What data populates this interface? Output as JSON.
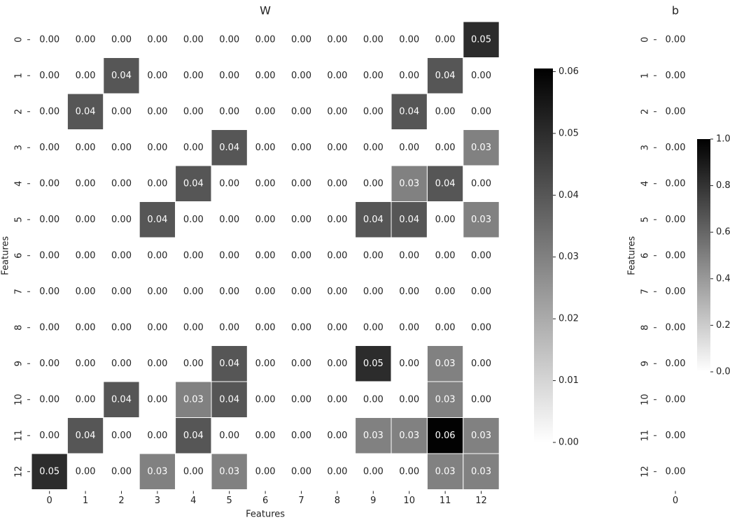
{
  "chart_data": [
    {
      "type": "heatmap",
      "title": "W",
      "xlabel": "Features",
      "ylabel": "Features",
      "x": [
        0,
        1,
        2,
        3,
        4,
        5,
        6,
        7,
        8,
        9,
        10,
        11,
        12
      ],
      "y": [
        0,
        1,
        2,
        3,
        4,
        5,
        6,
        7,
        8,
        9,
        10,
        11,
        12
      ],
      "colors": [
        "#ffffff",
        "#000000"
      ],
      "values": [
        [
          0,
          0,
          0,
          0,
          0,
          0,
          0,
          0,
          0,
          0,
          0,
          0,
          0.05
        ],
        [
          0,
          0,
          0.04,
          0,
          0,
          0,
          0,
          0,
          0,
          0,
          0,
          0.04,
          0
        ],
        [
          0,
          0.04,
          0,
          0,
          0,
          0,
          0,
          0,
          0,
          0,
          0.04,
          0,
          0
        ],
        [
          0,
          0,
          0,
          0,
          0,
          0.04,
          0,
          0,
          0,
          0,
          0,
          0,
          0.03
        ],
        [
          0,
          0,
          0,
          0,
          0.04,
          0,
          0,
          0,
          0,
          0,
          0.03,
          0.04,
          0
        ],
        [
          0,
          0,
          0,
          0.04,
          0,
          0,
          0,
          0,
          0,
          0.04,
          0.04,
          0,
          0.03
        ],
        [
          0,
          0,
          0,
          0,
          0,
          0,
          0,
          0,
          0,
          0,
          0,
          0,
          0
        ],
        [
          0,
          0,
          0,
          0,
          0,
          0,
          0,
          0,
          0,
          0,
          0,
          0,
          0
        ],
        [
          0,
          0,
          0,
          0,
          0,
          0,
          0,
          0,
          0,
          0,
          0,
          0,
          0
        ],
        [
          0,
          0,
          0,
          0,
          0,
          0.04,
          0,
          0,
          0,
          0.05,
          0,
          0.03,
          0
        ],
        [
          0,
          0,
          0.04,
          0,
          0.03,
          0.04,
          0,
          0,
          0,
          0,
          0,
          0.03,
          0
        ],
        [
          0,
          0.04,
          0,
          0,
          0.04,
          0,
          0,
          0,
          0,
          0.03,
          0.03,
          0.06,
          0.03
        ],
        [
          0.05,
          0,
          0,
          0.03,
          0,
          0.03,
          0,
          0,
          0,
          0,
          0,
          0.03,
          0.03
        ]
      ],
      "value_labels": [
        [
          "0.00",
          "0.00",
          "0.00",
          "0.00",
          "0.00",
          "0.00",
          "0.00",
          "0.00",
          "0.00",
          "0.00",
          "0.00",
          "0.00",
          "0.05"
        ],
        [
          "0.00",
          "0.00",
          "0.04",
          "0.00",
          "0.00",
          "0.00",
          "0.00",
          "0.00",
          "0.00",
          "0.00",
          "0.00",
          "0.04",
          "0.00"
        ],
        [
          "0.00",
          "0.04",
          "0.00",
          "0.00",
          "0.00",
          "0.00",
          "0.00",
          "0.00",
          "0.00",
          "0.00",
          "0.04",
          "0.00",
          "0.00"
        ],
        [
          "0.00",
          "0.00",
          "0.00",
          "0.00",
          "0.00",
          "0.04",
          "0.00",
          "0.00",
          "0.00",
          "0.00",
          "0.00",
          "0.00",
          "0.03"
        ],
        [
          "0.00",
          "0.00",
          "0.00",
          "0.00",
          "0.04",
          "0.00",
          "0.00",
          "0.00",
          "0.00",
          "0.00",
          "0.03",
          "0.04",
          "0.00"
        ],
        [
          "0.00",
          "0.00",
          "0.00",
          "0.04",
          "0.00",
          "0.00",
          "0.00",
          "0.00",
          "0.00",
          "0.04",
          "0.04",
          "0.00",
          "0.03"
        ],
        [
          "0.00",
          "0.00",
          "0.00",
          "0.00",
          "0.00",
          "0.00",
          "0.00",
          "0.00",
          "0.00",
          "0.00",
          "0.00",
          "0.00",
          "0.00"
        ],
        [
          "0.00",
          "0.00",
          "0.00",
          "0.00",
          "0.00",
          "0.00",
          "0.00",
          "0.00",
          "0.00",
          "0.00",
          "0.00",
          "0.00",
          "0.00"
        ],
        [
          "0.00",
          "0.00",
          "0.00",
          "0.00",
          "0.00",
          "0.00",
          "0.00",
          "0.00",
          "0.00",
          "0.00",
          "0.00",
          "0.00",
          "0.00"
        ],
        [
          "0.00",
          "0.00",
          "0.00",
          "0.00",
          "0.00",
          "0.04",
          "0.00",
          "0.00",
          "0.00",
          "0.05",
          "0.00",
          "0.03",
          "0.00"
        ],
        [
          "0.00",
          "0.00",
          "0.04",
          "0.00",
          "0.03",
          "0.04",
          "0.00",
          "0.00",
          "0.00",
          "0.00",
          "0.00",
          "0.03",
          "0.00"
        ],
        [
          "0.00",
          "0.04",
          "0.00",
          "0.00",
          "0.04",
          "0.00",
          "0.00",
          "0.00",
          "0.00",
          "0.03",
          "0.03",
          "0.06",
          "0.03"
        ],
        [
          "0.05",
          "0.00",
          "0.00",
          "0.03",
          "0.00",
          "0.03",
          "0.00",
          "0.00",
          "0.00",
          "0.00",
          "0.00",
          "0.03",
          "0.03"
        ]
      ],
      "colorbar_lim": [
        0,
        0.0605
      ],
      "colorbar_ticks": [
        {
          "value": 0,
          "label": "0.00"
        },
        {
          "value": 0.01,
          "label": "0.01"
        },
        {
          "value": 0.02,
          "label": "0.02"
        },
        {
          "value": 0.03,
          "label": "0.03"
        },
        {
          "value": 0.04,
          "label": "0.04"
        },
        {
          "value": 0.05,
          "label": "0.05"
        },
        {
          "value": 0.06,
          "label": "0.06"
        }
      ]
    },
    {
      "type": "heatmap",
      "title": "b",
      "ylabel": "Features",
      "x": [
        0
      ],
      "y": [
        0,
        1,
        2,
        3,
        4,
        5,
        6,
        7,
        8,
        9,
        10,
        11,
        12
      ],
      "colors": [
        "#ffffff",
        "#000000"
      ],
      "values": [
        [
          0
        ],
        [
          0
        ],
        [
          0
        ],
        [
          0
        ],
        [
          0
        ],
        [
          0
        ],
        [
          0
        ],
        [
          0
        ],
        [
          0
        ],
        [
          0
        ],
        [
          0
        ],
        [
          0
        ],
        [
          0
        ]
      ],
      "value_labels": [
        [
          "0.00"
        ],
        [
          "0.00"
        ],
        [
          "0.00"
        ],
        [
          "0.00"
        ],
        [
          "0.00"
        ],
        [
          "0.00"
        ],
        [
          "0.00"
        ],
        [
          "0.00"
        ],
        [
          "0.00"
        ],
        [
          "0.00"
        ],
        [
          "0.00"
        ],
        [
          "0.00"
        ],
        [
          "0.00"
        ]
      ],
      "colorbar_lim": [
        0,
        1
      ],
      "colorbar_ticks": [
        {
          "value": 0,
          "label": "0.0"
        },
        {
          "value": 0.2,
          "label": "0.2"
        },
        {
          "value": 0.4,
          "label": "0.4"
        },
        {
          "value": 0.6,
          "label": "0.6"
        },
        {
          "value": 0.8,
          "label": "0.8"
        },
        {
          "value": 1,
          "label": "1.0"
        }
      ]
    }
  ]
}
